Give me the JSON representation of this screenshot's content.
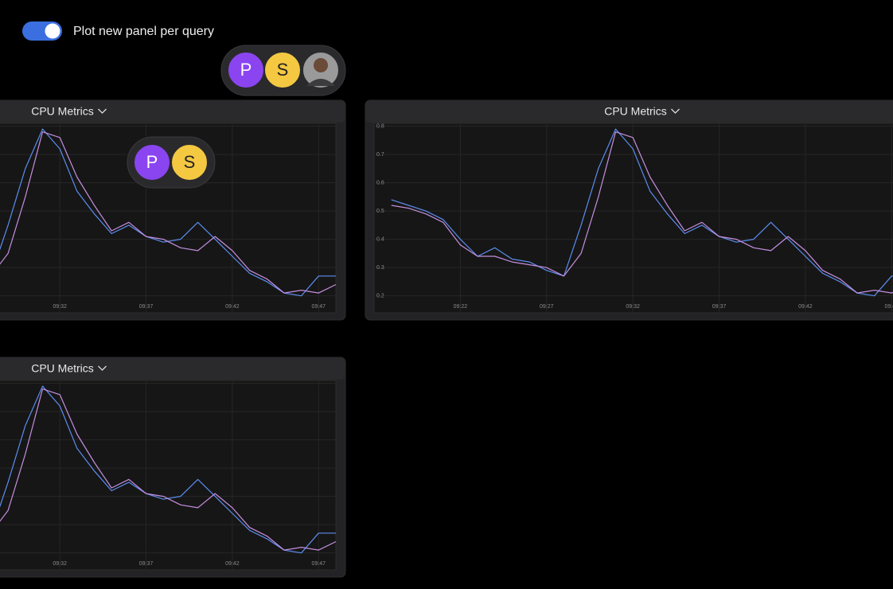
{
  "toggle": {
    "label": "Plot new panel per query",
    "on": true
  },
  "avatar_groups": [
    {
      "initials": [
        "P",
        "S"
      ]
    },
    {
      "initials": [
        "P",
        "S"
      ]
    }
  ],
  "panels": [
    {
      "title": "CPU Metrics"
    },
    {
      "title": "CPU Metrics"
    },
    {
      "title": "CPU Metrics"
    }
  ],
  "chart": {
    "type": "line",
    "x": [
      "09:18",
      "09:19",
      "09:20",
      "09:21",
      "09:22",
      "09:23",
      "09:24",
      "09:25",
      "09:26",
      "09:27",
      "09:28",
      "09:29",
      "09:30",
      "09:31",
      "09:32",
      "09:33",
      "09:34",
      "09:35",
      "09:36",
      "09:37",
      "09:38",
      "09:39",
      "09:40",
      "09:41",
      "09:42",
      "09:43",
      "09:44",
      "09:45",
      "09:46",
      "09:47",
      "09:48"
    ],
    "series": [
      {
        "color": "#5b8def",
        "values": [
          0.54,
          0.52,
          0.5,
          0.47,
          0.4,
          0.34,
          0.37,
          0.33,
          0.32,
          0.29,
          0.27,
          0.45,
          0.65,
          0.79,
          0.72,
          0.57,
          0.49,
          0.42,
          0.45,
          0.41,
          0.39,
          0.4,
          0.46,
          0.4,
          0.34,
          0.28,
          0.25,
          0.21,
          0.2,
          0.27,
          0.27
        ]
      },
      {
        "color": "#c58fe0",
        "values": [
          0.52,
          0.51,
          0.49,
          0.46,
          0.38,
          0.34,
          0.34,
          0.32,
          0.31,
          0.3,
          0.27,
          0.35,
          0.55,
          0.78,
          0.76,
          0.62,
          0.52,
          0.43,
          0.46,
          0.41,
          0.4,
          0.37,
          0.36,
          0.41,
          0.36,
          0.29,
          0.26,
          0.21,
          0.22,
          0.21,
          0.24
        ]
      }
    ],
    "xlim": [
      "09:17",
      "09:48"
    ],
    "ylim": [
      0.14,
      0.81
    ],
    "xticks": [
      "09:22",
      "09:27",
      "09:32",
      "09:37",
      "09:42",
      "09:47"
    ],
    "yticks": [
      0.2,
      0.3,
      0.4,
      0.5,
      0.6,
      0.7,
      0.8
    ],
    "grid": true
  }
}
